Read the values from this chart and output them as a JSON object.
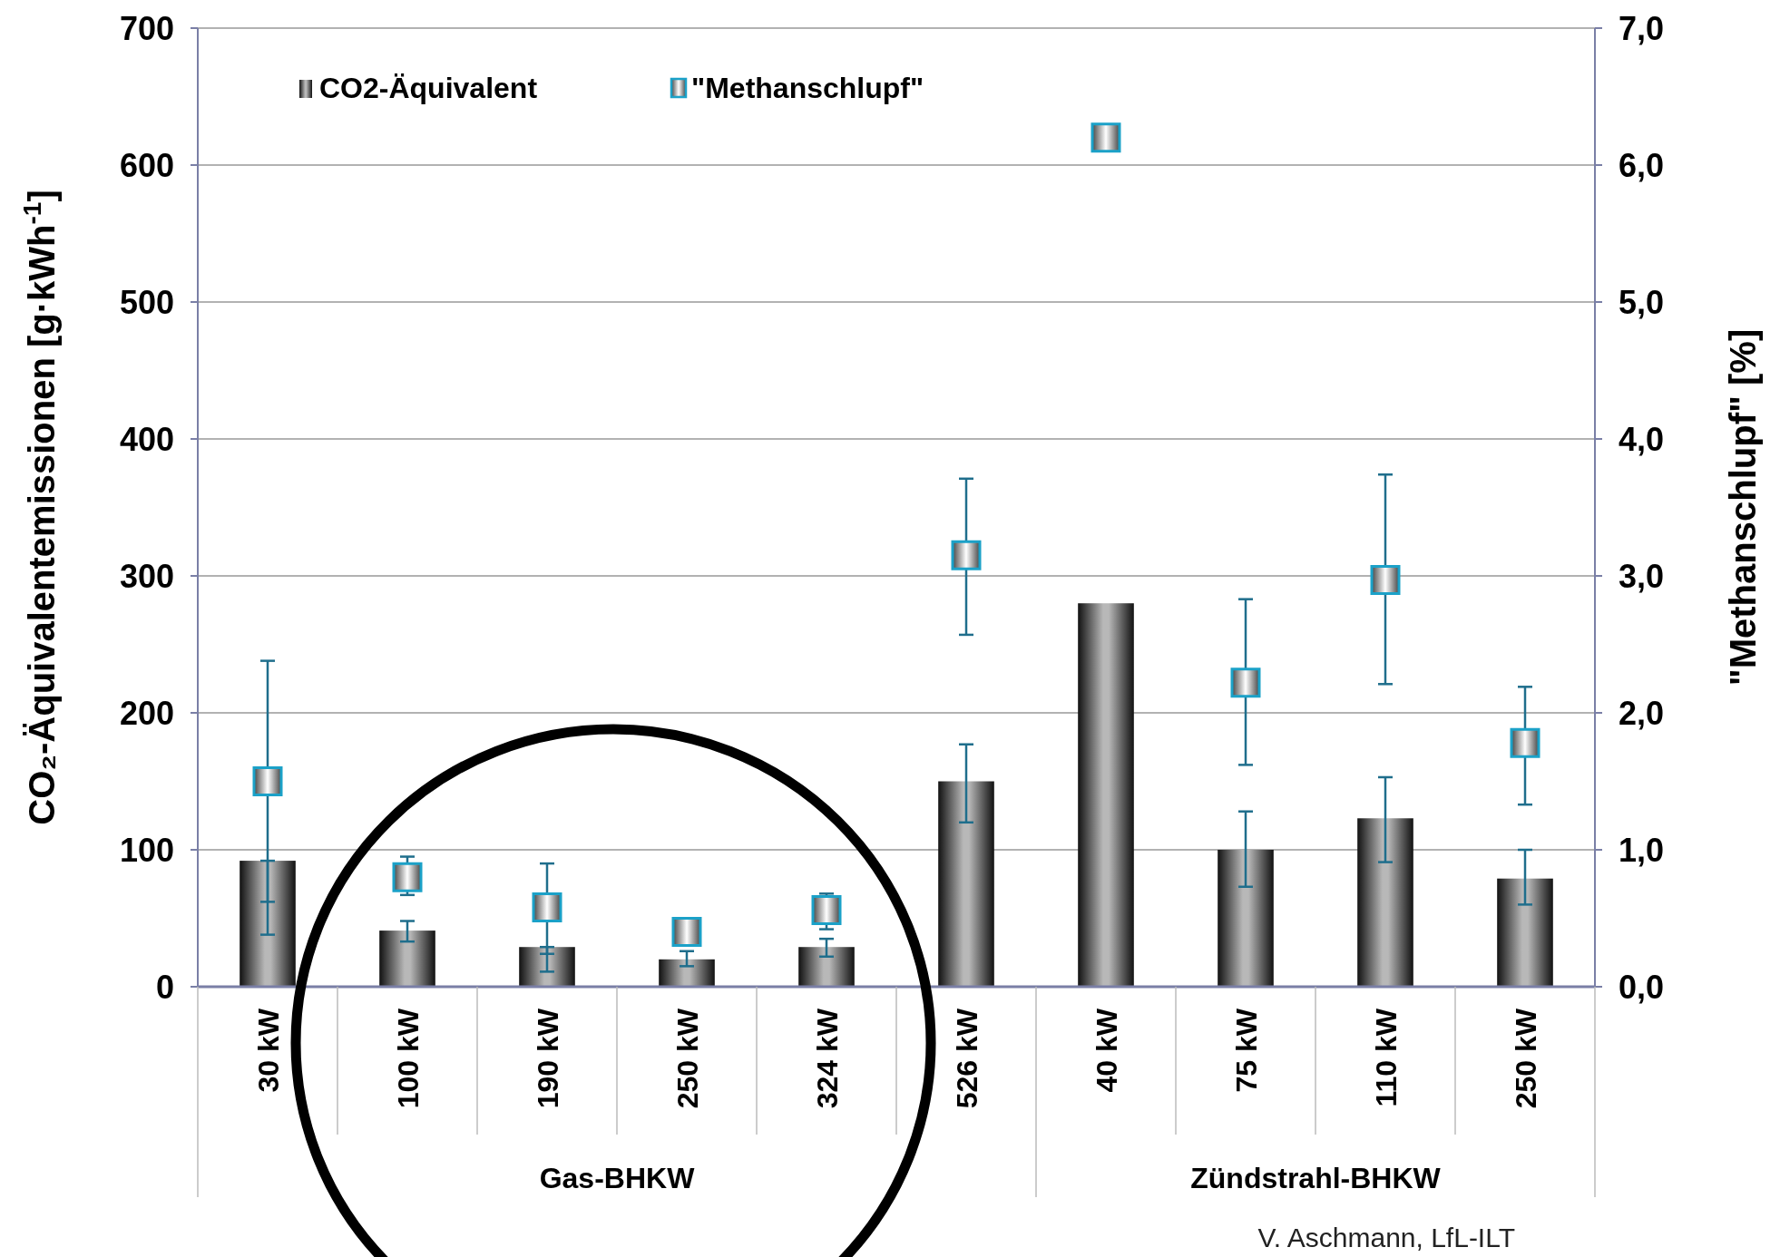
{
  "chart_data": {
    "type": "bar",
    "categories": [
      "30 kW",
      "100 kW",
      "190 kW",
      "250 kW",
      "324 kW",
      "526 kW",
      "40 kW",
      "75 kW",
      "110 kW",
      "250 kW"
    ],
    "ylabel": "CO₂-Äquivalentemissionen [g·kWh$^{-1}$]",
    "y2label": "\"Methanschlupf\" [%]",
    "ylim": [
      0,
      700
    ],
    "yticks": [
      0,
      100,
      200,
      300,
      400,
      500,
      600,
      700
    ],
    "y2lim": [
      0,
      7
    ],
    "y2ticks": [
      {
        "value": 0,
        "label": "0,0"
      },
      {
        "value": 1,
        "label": "1,0"
      },
      {
        "value": 2,
        "label": "2,0"
      },
      {
        "value": 3,
        "label": "3,0"
      },
      {
        "value": 4,
        "label": "4,0"
      },
      {
        "value": 5,
        "label": "5,0"
      },
      {
        "value": 6,
        "label": "6,0"
      },
      {
        "value": 7,
        "label": "7,0"
      }
    ],
    "grid": "y",
    "legend": "top left",
    "series": [
      {
        "name": "CO2-Äquivalent",
        "color": "#b8b8b8",
        "values": [
          92,
          41,
          29,
          20,
          29,
          150,
          280,
          100,
          123,
          79
        ],
        "errors": [
          [
            38,
            92
          ],
          [
            33,
            48
          ],
          [
            11,
            29
          ],
          [
            15,
            26
          ],
          [
            22,
            35
          ],
          [
            120,
            177
          ],
          null,
          [
            73,
            128
          ],
          [
            91,
            153
          ],
          [
            60,
            100
          ]
        ]
      },
      {
        "name": "\"Methanschlupf\"",
        "type": "scatter",
        "axis": "y2",
        "marker": "square",
        "color": "#1ba1c8",
        "values": [
          1.5,
          0.8,
          0.58,
          0.4,
          0.56,
          3.15,
          6.2,
          2.22,
          2.97,
          1.78
        ],
        "errors": [
          [
            0.62,
            2.38
          ],
          [
            0.67,
            0.95
          ],
          [
            0.24,
            0.9
          ],
          null,
          [
            0.42,
            0.68
          ],
          [
            2.57,
            3.71
          ],
          null,
          [
            1.62,
            2.83
          ],
          [
            2.21,
            3.74
          ],
          [
            1.33,
            2.19
          ]
        ]
      }
    ],
    "annotations": [
      "Gas-BHKW",
      "Zündstrahl-BHKW",
      "V. Aschmann, LfL-ILT"
    ]
  }
}
